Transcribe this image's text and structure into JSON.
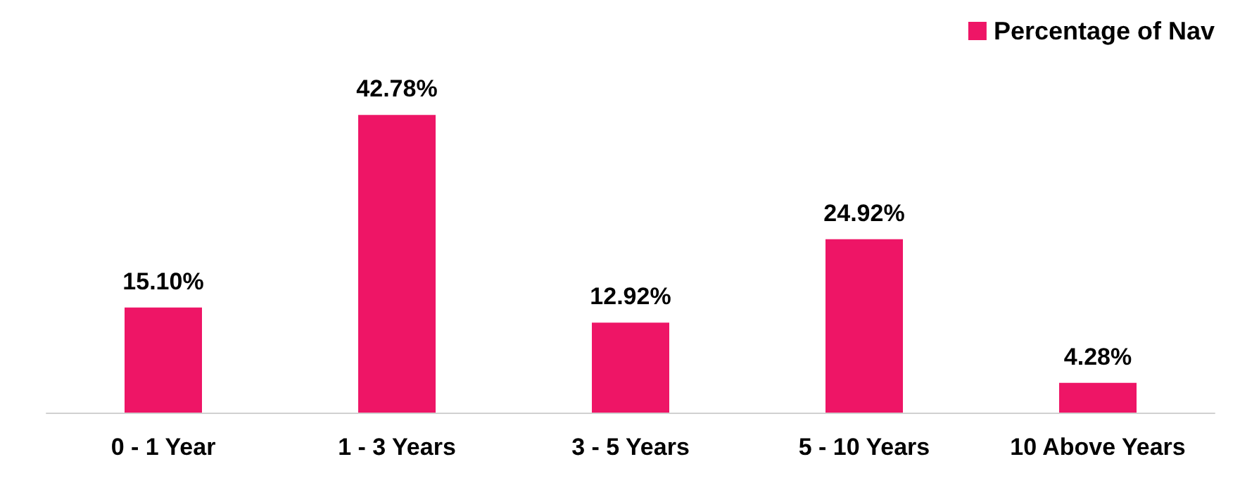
{
  "chart_data": {
    "type": "bar",
    "categories": [
      "0 - 1 Year",
      "1 - 3 Years",
      "3 - 5 Years",
      "5 - 10 Years",
      "10 Above Years"
    ],
    "series": [
      {
        "name": "Percentage of Nav",
        "color": "#ee1566",
        "values": [
          15.1,
          42.78,
          12.92,
          24.92,
          4.28
        ],
        "value_labels": [
          "15.10%",
          "42.78%",
          "12.92%",
          "24.92%",
          "4.28%"
        ]
      }
    ],
    "legend": "top right",
    "grid": false
  }
}
